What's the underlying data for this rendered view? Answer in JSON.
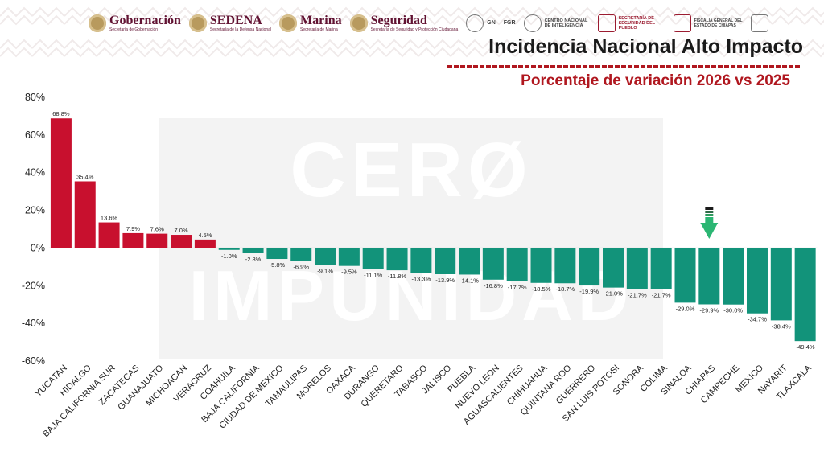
{
  "header": {
    "logos": [
      {
        "name": "Gobernación",
        "sub": "Secretaría de Gobernación"
      },
      {
        "name": "SEDENA",
        "sub": "Secretaría de la Defensa Nacional"
      },
      {
        "name": "Marina",
        "sub": "Secretaría de Marina"
      },
      {
        "name": "Seguridad",
        "sub": "Secretaría de Seguridad y Protección Ciudadana"
      }
    ],
    "small_logos": [
      "GN",
      "FGR",
      "CENTRO NACIONAL DE INTELIGENCIA",
      "SECRETARÍA DE SEGURIDAD DEL PUEBLO",
      "FISCALÍA GENERAL DEL ESTADO DE CHIAPAS"
    ],
    "title": "Incidencia Nacional Alto Impacto",
    "subtitle": "Porcentaje de variación 2026 vs 2025"
  },
  "watermark": {
    "line1": "CERØ",
    "line2": "IMPUNIDAD"
  },
  "colors": {
    "positive": "#c8102e",
    "negative": "#12937a",
    "highlight_arrow": "#2bb673",
    "title_rule": "#b0171f"
  },
  "chart_data": {
    "type": "bar",
    "title": "Porcentaje de variación 2026 vs 2025",
    "xlabel": "",
    "ylabel": "",
    "ylim": [
      -60,
      80
    ],
    "yticks": [
      80,
      60,
      40,
      20,
      0,
      -20,
      -40,
      -60
    ],
    "ytick_labels": [
      "80%",
      "60%",
      "40%",
      "20%",
      "0%",
      "-20%",
      "-40%",
      "-60%"
    ],
    "grid": false,
    "highlight": "CHIAPAS",
    "categories": [
      "YUCATAN",
      "HIDALGO",
      "BAJA CALIFORNIA SUR",
      "ZACATECAS",
      "GUANAJUATO",
      "MICHOACAN",
      "VERACRUZ",
      "COAHUILA",
      "BAJA CALIFORNIA",
      "CIUDAD DE MEXICO",
      "TAMAULIPAS",
      "MORELOS",
      "OAXACA",
      "DURANGO",
      "QUERETARO",
      "TABASCO",
      "JALISCO",
      "PUEBLA",
      "NUEVO LEON",
      "AGUASCALIENTES",
      "CHIHUAHUA",
      "QUINTANA ROO",
      "GUERRERO",
      "SAN LUIS POTOSI",
      "SONORA",
      "COLIMA",
      "SINALOA",
      "CHIAPAS",
      "CAMPECHE",
      "MEXICO",
      "NAYARIT",
      "TLAXCALA"
    ],
    "values": [
      68.8,
      35.4,
      13.6,
      7.9,
      7.6,
      7.0,
      4.5,
      -1.0,
      -2.8,
      -5.8,
      -6.9,
      -9.1,
      -9.5,
      -11.1,
      -11.8,
      -13.3,
      -13.9,
      -14.1,
      -16.8,
      -17.7,
      -18.5,
      -18.7,
      -19.9,
      -21.0,
      -21.7,
      -21.7,
      -29.0,
      -29.9,
      -30.0,
      -34.7,
      -38.4,
      -49.4
    ],
    "data_labels": [
      "68.8%",
      "35.4%",
      "13.6%",
      "7.9%",
      "7.6%",
      "7.0%",
      "4.5%",
      "-1.0%",
      "-2.8%",
      "-5.8%",
      "-6.9%",
      "-9.1%",
      "-9.5%",
      "-11.1%",
      "-11.8%",
      "-13.3%",
      "-13.9%",
      "-14.1%",
      "-16.8%",
      "-17.7%",
      "-18.5%",
      "-18.7%",
      "-19.9%",
      "-21.0%",
      "-21.7%",
      "-21.7%",
      "-29.0%",
      "-29.9%",
      "-30.0%",
      "-34.7%",
      "-38.4%",
      "-49.4%"
    ]
  }
}
